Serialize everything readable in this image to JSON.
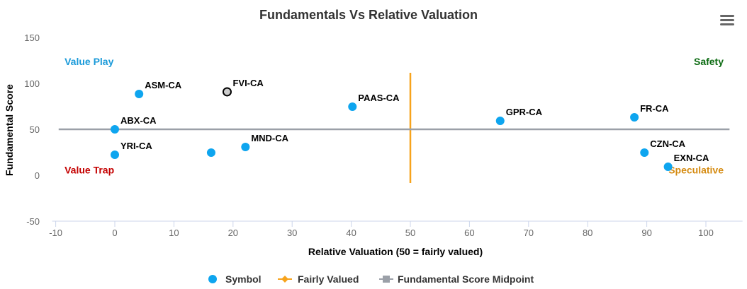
{
  "chart_data": {
    "type": "scatter",
    "title": "Fundamentals Vs Relative Valuation",
    "xlabel": "Relative Valuation (50 = fairly valued)",
    "ylabel": "Fundamental Score",
    "xlim": [
      -10,
      105
    ],
    "ylim": [
      -50,
      150
    ],
    "x_ticks": [
      -10,
      0,
      10,
      20,
      30,
      40,
      50,
      60,
      70,
      80,
      90,
      100
    ],
    "y_ticks": [
      -50,
      0,
      50,
      100,
      150
    ],
    "grid": false,
    "legend_position": "bottom",
    "series": [
      {
        "name": "Symbol",
        "type": "scatter",
        "color": "#0ea5ef",
        "points": [
          {
            "label": "ASM-CA",
            "x": 4.1,
            "y": 88.5
          },
          {
            "label": "FVI-CA",
            "x": 19.0,
            "y": 90.8,
            "highlighted": true
          },
          {
            "label": "PAAS-CA",
            "x": 40.2,
            "y": 74.6
          },
          {
            "label": "ABX-CA",
            "x": 0.0,
            "y": 50.0
          },
          {
            "label": "YRI-CA",
            "x": 0.0,
            "y": 22.3
          },
          {
            "label": "",
            "x": 16.3,
            "y": 24.6
          },
          {
            "label": "MND-CA",
            "x": 22.1,
            "y": 30.8
          },
          {
            "label": "GPR-CA",
            "x": 65.2,
            "y": 59.2
          },
          {
            "label": "FR-CA",
            "x": 87.9,
            "y": 63.1
          },
          {
            "label": "CZN-CA",
            "x": 89.6,
            "y": 24.6
          },
          {
            "label": "EXN-CA",
            "x": 93.6,
            "y": 9.2
          }
        ]
      },
      {
        "name": "Fairly Valued",
        "type": "line",
        "color": "#f7a31c",
        "points": [
          {
            "x": 50,
            "y": 111.5
          },
          {
            "x": 50,
            "y": -8.5
          }
        ]
      },
      {
        "name": "Fundamental Score Midpoint",
        "type": "line",
        "color": "#9ba0a8",
        "points": [
          {
            "x": -9.5,
            "y": 50
          },
          {
            "x": 104,
            "y": 50
          }
        ]
      }
    ],
    "annotations": [
      {
        "text": "Value Play",
        "x": -8.5,
        "y": 120,
        "color": "#1a9ad9"
      },
      {
        "text": "Safety",
        "x": 103,
        "y": 120,
        "color": "#0c6b12",
        "align": "end"
      },
      {
        "text": "Value Trap",
        "x": -8.5,
        "y": 2,
        "color": "#c40000"
      },
      {
        "text": "Speculative",
        "x": 103,
        "y": 2,
        "color": "#d58b12",
        "align": "end"
      }
    ]
  },
  "menu": {
    "icon": "hamburger-menu-icon"
  }
}
